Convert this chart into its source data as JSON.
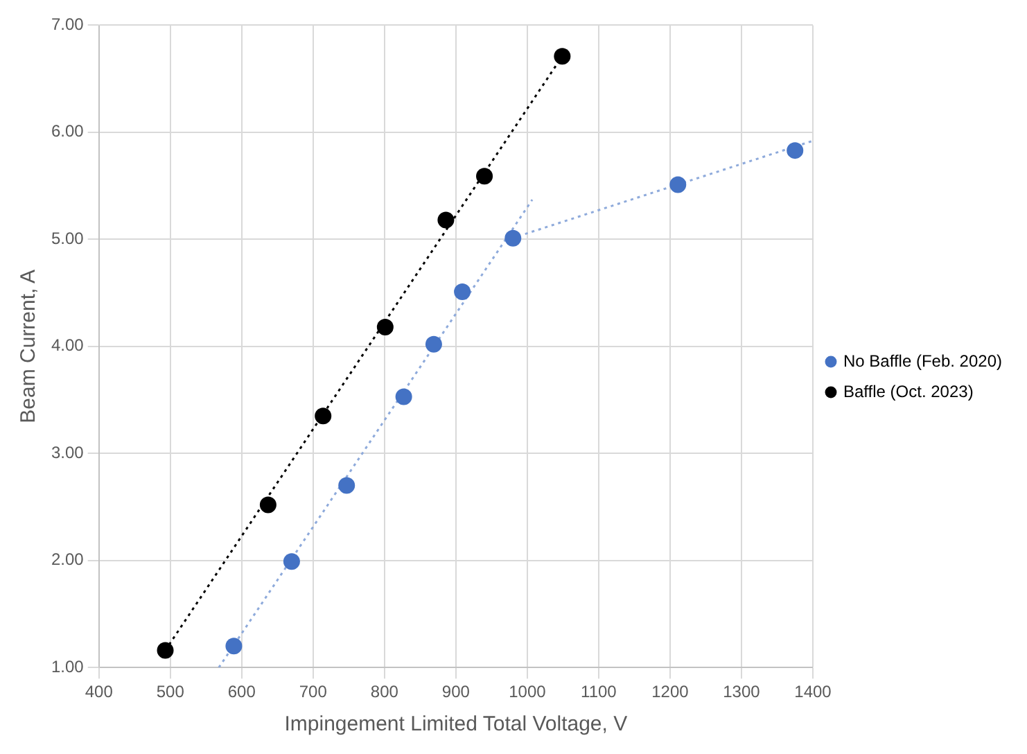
{
  "chart_data": {
    "type": "scatter",
    "xlabel": "Impingement Limited Total Voltage, V",
    "ylabel": "Beam Current, A",
    "xlim": [
      400,
      1400
    ],
    "xticks": [
      400,
      500,
      600,
      700,
      800,
      900,
      1000,
      1100,
      1200,
      1300,
      1400
    ],
    "ylim": [
      1,
      7
    ],
    "yticks": [
      {
        "value": 1,
        "label": "1.00"
      },
      {
        "value": 2,
        "label": "2.00"
      },
      {
        "value": 3,
        "label": "3.00"
      },
      {
        "value": 4,
        "label": "4.00"
      },
      {
        "value": 5,
        "label": "5.00"
      },
      {
        "value": 6,
        "label": "6.00"
      },
      {
        "value": 7,
        "label": "7.00"
      }
    ],
    "grid": true,
    "legend": "right",
    "marker": "circle",
    "series": [
      {
        "name": "No Baffle (Feb. 2020)",
        "color": "#4472c4",
        "x": [
          589,
          670,
          747,
          827,
          869,
          909,
          980,
          1211,
          1375
        ],
        "values": [
          1.2,
          1.99,
          2.7,
          3.53,
          4.02,
          4.51,
          5.01,
          5.51,
          5.83
        ]
      },
      {
        "name": "Baffle (Oct. 2023)",
        "color": "#000000",
        "x": [
          493,
          637,
          714,
          801,
          886,
          940,
          1049
        ],
        "values": [
          1.16,
          2.52,
          3.35,
          4.18,
          5.18,
          5.59,
          6.71
        ]
      },
      {
        "type": "line",
        "color": "#8eaadb",
        "line_style": "dotted",
        "marker": "none",
        "x": [
          568,
          1007
        ],
        "values": [
          1.0,
          5.37
        ]
      },
      {
        "type": "line",
        "color": "#8eaadb",
        "line_style": "dotted",
        "marker": "none",
        "x": [
          997,
          1400
        ],
        "values": [
          5.05,
          5.92
        ]
      },
      {
        "type": "line",
        "color": "#000000",
        "line_style": "dotted",
        "marker": "none",
        "x": [
          493,
          1049
        ],
        "values": [
          1.16,
          6.71
        ]
      }
    ]
  }
}
